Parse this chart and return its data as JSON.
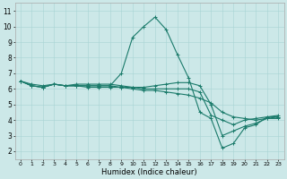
{
  "xlabel": "Humidex (Indice chaleur)",
  "xlim": [
    -0.5,
    23.5
  ],
  "ylim": [
    1.5,
    11.5
  ],
  "xticks": [
    0,
    1,
    2,
    3,
    4,
    5,
    6,
    7,
    8,
    9,
    10,
    11,
    12,
    13,
    14,
    15,
    16,
    17,
    18,
    19,
    20,
    21,
    22,
    23
  ],
  "yticks": [
    2,
    3,
    4,
    5,
    6,
    7,
    8,
    9,
    10,
    11
  ],
  "bg_color": "#cce8e8",
  "line_color": "#1a7a6a",
  "series": {
    "line1": [
      6.5,
      6.3,
      6.2,
      6.3,
      6.2,
      6.2,
      6.2,
      6.2,
      6.2,
      6.1,
      6.1,
      6.0,
      6.0,
      6.0,
      6.0,
      6.0,
      5.8,
      4.3,
      4.0,
      3.7,
      4.0,
      4.1,
      4.2,
      4.2
    ],
    "line2": [
      6.5,
      6.2,
      6.1,
      6.3,
      6.2,
      6.2,
      6.1,
      6.1,
      6.1,
      6.1,
      6.0,
      5.9,
      5.9,
      5.8,
      5.7,
      5.6,
      5.4,
      5.1,
      4.5,
      4.2,
      4.1,
      4.0,
      4.1,
      4.1
    ],
    "line3": [
      6.5,
      6.2,
      6.1,
      6.3,
      6.2,
      6.2,
      6.2,
      6.2,
      6.2,
      7.0,
      9.3,
      10.0,
      10.6,
      9.8,
      8.2,
      6.7,
      4.5,
      4.1,
      2.2,
      2.5,
      3.5,
      3.7,
      4.2,
      4.3
    ],
    "line4": [
      6.5,
      6.2,
      6.1,
      6.3,
      6.2,
      6.3,
      6.3,
      6.3,
      6.3,
      6.2,
      6.1,
      6.1,
      6.2,
      6.3,
      6.4,
      6.4,
      6.2,
      5.0,
      3.0,
      3.3,
      3.6,
      3.8,
      4.1,
      4.2
    ]
  }
}
